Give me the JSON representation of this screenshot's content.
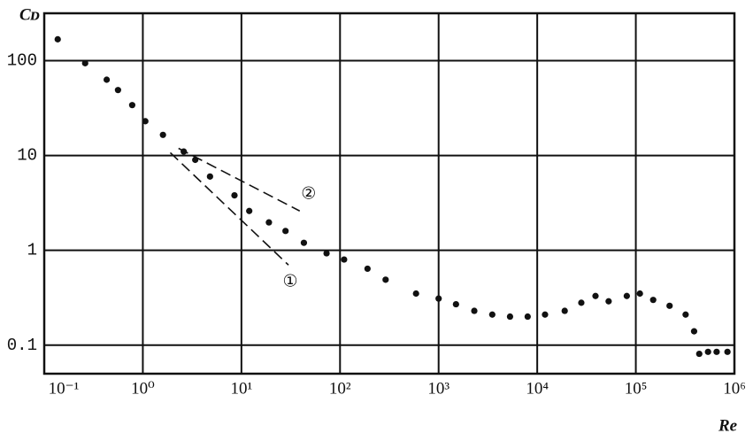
{
  "chart_data": {
    "type": "scatter",
    "x_label": "Re",
    "y_label": "Cᴅ",
    "xscale": "log",
    "yscale": "log",
    "grid": true,
    "color": "#111111",
    "xlim": [
      0.1,
      1000000
    ],
    "ylim": [
      0.05,
      316
    ],
    "xticks": [
      {
        "value": 0.1,
        "label": "10⁻¹"
      },
      {
        "value": 1,
        "label": "10⁰"
      },
      {
        "value": 10,
        "label": "10¹"
      },
      {
        "value": 100,
        "label": "10²"
      },
      {
        "value": 1000,
        "label": "10³"
      },
      {
        "value": 10000,
        "label": "10⁴"
      },
      {
        "value": 100000,
        "label": "10⁵"
      },
      {
        "value": 1000000,
        "label": "10⁶"
      }
    ],
    "yticks": [
      100,
      10,
      1,
      0.1
    ],
    "x": [
      0.137,
      0.26,
      0.43,
      0.56,
      0.78,
      1.06,
      1.6,
      2.6,
      3.4,
      4.8,
      8.5,
      12,
      19,
      28,
      43,
      73,
      110,
      190,
      290,
      590,
      1000,
      1500,
      2300,
      3500,
      5300,
      8000,
      12000,
      19000,
      28000,
      39000,
      53000,
      81000,
      110000,
      150000,
      220000,
      320000,
      390000,
      440000,
      540000,
      660000,
      850000
    ],
    "values": [
      168,
      94,
      63,
      49,
      34,
      23,
      16.5,
      11,
      9,
      6,
      3.8,
      2.6,
      1.97,
      1.6,
      1.2,
      0.93,
      0.8,
      0.64,
      0.49,
      0.35,
      0.31,
      0.27,
      0.23,
      0.21,
      0.2,
      0.2,
      0.21,
      0.23,
      0.28,
      0.33,
      0.29,
      0.33,
      0.35,
      0.3,
      0.26,
      0.21,
      0.14,
      0.081,
      0.085,
      0.085,
      0.085
    ],
    "lines": [
      {
        "label": "①",
        "x": [
          1.9,
          30
        ],
        "y": [
          10.7,
          0.7
        ]
      },
      {
        "label": "②",
        "x": [
          2.3,
          39
        ],
        "y": [
          11.9,
          2.6
        ]
      }
    ]
  }
}
